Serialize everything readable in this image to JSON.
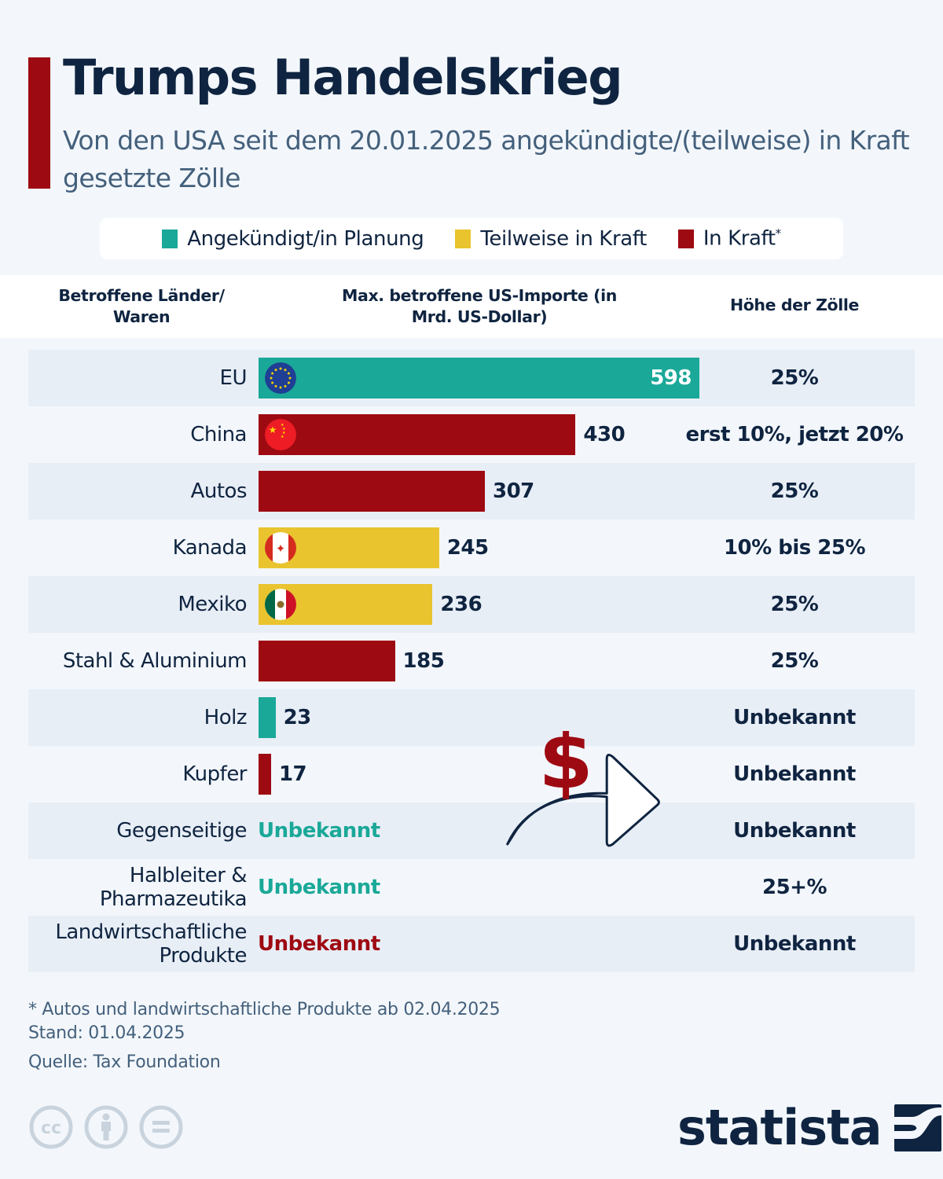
{
  "title": "Trumps Handelskrieg",
  "subtitle": "Von den USA seit dem 20.01.2025 angekündigte/(teilweise) in Kraft gesetzte Zölle",
  "legend": [
    {
      "label": "Angekündigt/in Planung",
      "color": "#1aa898"
    },
    {
      "label": "Teilweise in Kraft",
      "color": "#e9c42f"
    },
    {
      "label": "In Kraft",
      "marker": "*",
      "color": "#9e0a12"
    }
  ],
  "columns": {
    "countries": "Betroffene Länder/ Waren",
    "imports": "Max. betroffene US-Importe (in Mrd. US-Dollar)",
    "tariffs": "Höhe der Zölle"
  },
  "chart_data": {
    "type": "bar",
    "orientation": "horizontal",
    "title": "Trumps Handelskrieg",
    "xlabel": "Max. betroffene US-Importe (in Mrd. US-Dollar)",
    "xlim": [
      0,
      598
    ],
    "categories": [
      "EU",
      "China",
      "Autos",
      "Kanada",
      "Mexiko",
      "Stahl & Aluminium",
      "Holz",
      "Kupfer",
      "Gegenseitige",
      "Halbleiter & Pharmazeutika",
      "Landwirtschaftliche Produkte"
    ],
    "rows": [
      {
        "label": "EU",
        "value": 598,
        "status": "announced",
        "flag": "eu",
        "tariff": "25%"
      },
      {
        "label": "China",
        "value": 430,
        "status": "in_force",
        "flag": "cn",
        "tariff": "erst 10%, jetzt 20%"
      },
      {
        "label": "Autos",
        "value": 307,
        "status": "in_force",
        "flag": null,
        "tariff": "25%"
      },
      {
        "label": "Kanada",
        "value": 245,
        "status": "partial",
        "flag": "ca",
        "tariff": "10% bis 25%"
      },
      {
        "label": "Mexiko",
        "value": 236,
        "status": "partial",
        "flag": "mx",
        "tariff": "25%"
      },
      {
        "label": "Stahl & Aluminium",
        "value": 185,
        "status": "in_force",
        "flag": null,
        "tariff": "25%"
      },
      {
        "label": "Holz",
        "value": 23,
        "status": "announced",
        "flag": null,
        "tariff": "Unbekannt"
      },
      {
        "label": "Kupfer",
        "value": 17,
        "status": "in_force",
        "flag": null,
        "tariff": "Unbekannt"
      },
      {
        "label": "Gegenseitige",
        "value": null,
        "value_text": "Unbekannt",
        "status": "announced",
        "flag": null,
        "tariff": "Unbekannt"
      },
      {
        "label": "Halbleiter & Pharmazeutika",
        "value": null,
        "value_text": "Unbekannt",
        "status": "announced",
        "flag": null,
        "tariff": "25+%"
      },
      {
        "label": "Landwirtschaftliche Produkte",
        "value": null,
        "value_text": "Unbekannt",
        "status": "in_force",
        "flag": null,
        "tariff": "Unbekannt"
      }
    ],
    "status_colors": {
      "announced": "#1aa898",
      "partial": "#e9c42f",
      "in_force": "#9e0a12"
    }
  },
  "footnote": "* Autos und landwirtschaftliche Produkte ab 02.04.2025",
  "stand": "Stand: 01.04.2025",
  "source": "Quelle: Tax Foundation",
  "logo": "statista",
  "colors": {
    "navy": "#0f2440",
    "red": "#9e0a12",
    "teal": "#1aa898",
    "yellow": "#e9c42f"
  }
}
